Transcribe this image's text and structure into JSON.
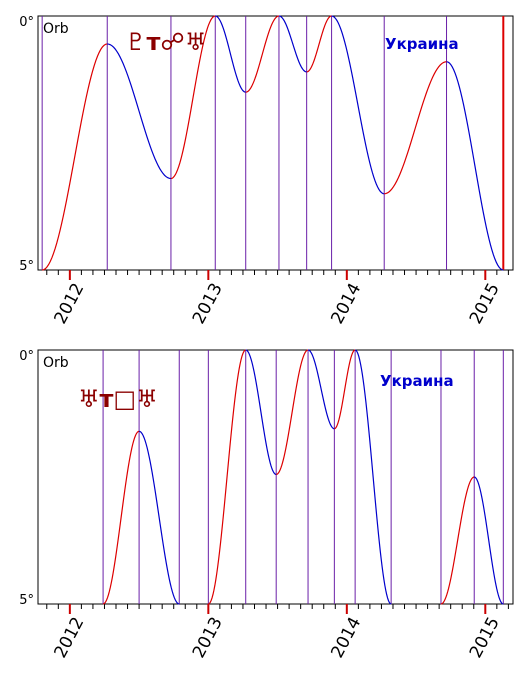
{
  "chart_data": [
    {
      "type": "line",
      "orb_label": "Orb",
      "glyph_label": "♇ᴛ☍♅",
      "location_label": "Украина",
      "ylim": [
        0,
        5
      ],
      "ytick_labels": [
        "0°",
        "5°"
      ],
      "x_range": [
        2011.77,
        2015.2
      ],
      "year_labels": [
        {
          "label": "2012",
          "x": 2012.0
        },
        {
          "label": "2013",
          "x": 2013.0
        },
        {
          "label": "2014",
          "x": 2014.0
        },
        {
          "label": "2015",
          "x": 2015.0
        }
      ],
      "marker_lines_x": [
        2011.8,
        2012.27,
        2012.73,
        2013.05,
        2013.27,
        2013.51,
        2013.71,
        2013.89,
        2014.27,
        2014.72
      ],
      "end_line_x": 2015.13,
      "segments": [
        {
          "color": "#dd0000",
          "points": [
            [
              2011.8,
              5.0
            ],
            [
              2012.27,
              0.55
            ]
          ]
        },
        {
          "color": "#0000cc",
          "points": [
            [
              2012.27,
              0.55
            ],
            [
              2012.73,
              3.2
            ]
          ]
        },
        {
          "color": "#dd0000",
          "points": [
            [
              2012.73,
              3.2
            ],
            [
              2013.05,
              0.0
            ]
          ]
        },
        {
          "color": "#0000cc",
          "points": [
            [
              2013.05,
              0.0
            ],
            [
              2013.27,
              1.5
            ]
          ]
        },
        {
          "color": "#dd0000",
          "points": [
            [
              2013.27,
              1.5
            ],
            [
              2013.51,
              0.0
            ]
          ]
        },
        {
          "color": "#0000cc",
          "points": [
            [
              2013.51,
              0.0
            ],
            [
              2013.71,
              1.1
            ]
          ]
        },
        {
          "color": "#dd0000",
          "points": [
            [
              2013.71,
              1.1
            ],
            [
              2013.89,
              0.0
            ]
          ]
        },
        {
          "color": "#0000cc",
          "points": [
            [
              2013.89,
              0.0
            ],
            [
              2014.27,
              3.5
            ]
          ]
        },
        {
          "color": "#dd0000",
          "points": [
            [
              2014.27,
              3.5
            ],
            [
              2014.72,
              0.9
            ]
          ]
        },
        {
          "color": "#0000cc",
          "points": [
            [
              2014.72,
              0.9
            ],
            [
              2015.13,
              5.0
            ]
          ]
        }
      ]
    },
    {
      "type": "line",
      "orb_label": "Orb",
      "glyph_label": "♅ᴛ□♅",
      "location_label": "Украина",
      "ylim": [
        0,
        5
      ],
      "ytick_labels": [
        "0°",
        "5°"
      ],
      "x_range": [
        2011.77,
        2015.2
      ],
      "year_labels": [
        {
          "label": "2012",
          "x": 2012.0
        },
        {
          "label": "2013",
          "x": 2013.0
        },
        {
          "label": "2014",
          "x": 2014.0
        },
        {
          "label": "2015",
          "x": 2015.0
        }
      ],
      "marker_lines_x": [
        2012.24,
        2012.5,
        2012.79,
        2013.0,
        2013.27,
        2013.49,
        2013.72,
        2013.91,
        2014.06,
        2014.32,
        2014.68,
        2014.92,
        2015.13
      ],
      "end_line_x": null,
      "segments": [
        {
          "color": "#dd0000",
          "points": [
            [
              2012.24,
              5.0
            ],
            [
              2012.5,
              1.6
            ]
          ]
        },
        {
          "color": "#0000cc",
          "points": [
            [
              2012.5,
              1.6
            ],
            [
              2012.79,
              5.0
            ]
          ]
        },
        {
          "color": "#dd0000",
          "points": [
            [
              2013.0,
              5.0
            ],
            [
              2013.27,
              0.0
            ]
          ]
        },
        {
          "color": "#0000cc",
          "points": [
            [
              2013.27,
              0.0
            ],
            [
              2013.49,
              2.45
            ]
          ]
        },
        {
          "color": "#dd0000",
          "points": [
            [
              2013.49,
              2.45
            ],
            [
              2013.72,
              0.0
            ]
          ]
        },
        {
          "color": "#0000cc",
          "points": [
            [
              2013.72,
              0.0
            ],
            [
              2013.91,
              1.55
            ]
          ]
        },
        {
          "color": "#dd0000",
          "points": [
            [
              2013.91,
              1.55
            ],
            [
              2014.06,
              0.0
            ]
          ]
        },
        {
          "color": "#0000cc",
          "points": [
            [
              2014.06,
              0.0
            ],
            [
              2014.32,
              5.0
            ]
          ]
        },
        {
          "color": "#dd0000",
          "points": [
            [
              2014.68,
              5.0
            ],
            [
              2014.92,
              2.5
            ]
          ]
        },
        {
          "color": "#0000cc",
          "points": [
            [
              2014.92,
              2.5
            ],
            [
              2015.13,
              5.0
            ]
          ]
        }
      ]
    }
  ]
}
